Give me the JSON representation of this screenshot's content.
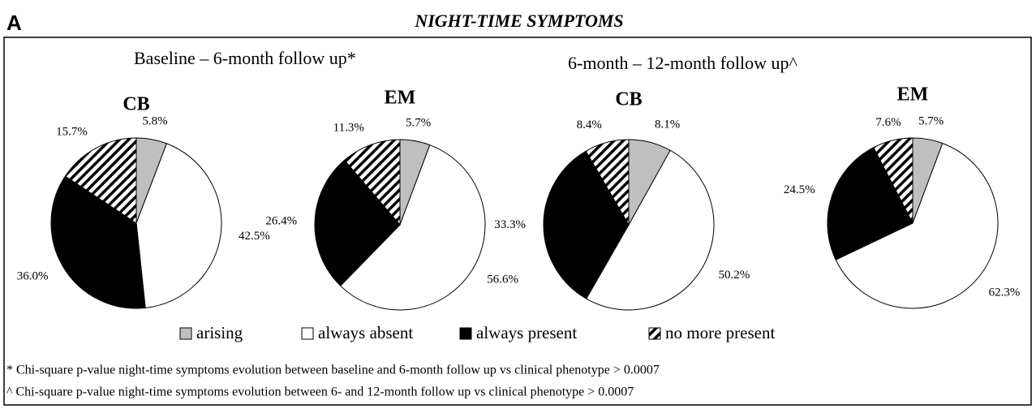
{
  "panel": "A",
  "title": "NIGHT-TIME SYMPTOMS",
  "groups": [
    "Baseline – 6-month follow up*",
    "6-month – 12-month follow up^"
  ],
  "footnotes": [
    "* Chi-square p-value night-time symptoms evolution between baseline and 6-month follow up vs clinical phenotype > 0.0007",
    "^ Chi-square p-value night-time symptoms evolution between 6- and 12-month follow up vs clinical phenotype > 0.0007"
  ],
  "chart_data": [
    {
      "type": "pie",
      "title": "CB",
      "categories": [
        "arising",
        "always absent",
        "always present",
        "no more present"
      ],
      "values": [
        5.8,
        42.5,
        36,
        15.7
      ],
      "value_labels": [
        "5.8%",
        "42.5%",
        "36.0%",
        "15.7%"
      ],
      "colors": [
        "#bfbfbf",
        "#ffffff",
        "#000000",
        "#ffffff"
      ],
      "hatch": [
        false,
        false,
        false,
        true
      ]
    },
    {
      "type": "pie",
      "title": "EM",
      "categories": [
        "arising",
        "always absent",
        "always present",
        "no more present"
      ],
      "values": [
        5.7,
        56.6,
        26.4,
        11.3
      ],
      "value_labels": [
        "5.7%",
        "56.6%",
        "26.4%",
        "11.3%"
      ],
      "colors": [
        "#bfbfbf",
        "#ffffff",
        "#000000",
        "#ffffff"
      ],
      "hatch": [
        false,
        false,
        false,
        true
      ]
    },
    {
      "type": "pie",
      "title": "CB",
      "categories": [
        "arising",
        "always absent",
        "always present",
        "no more present"
      ],
      "values": [
        8.1,
        50.2,
        33.3,
        8.4
      ],
      "value_labels": [
        "8.1%",
        "50.2%",
        "33.3%",
        "8.4%"
      ],
      "colors": [
        "#bfbfbf",
        "#ffffff",
        "#000000",
        "#ffffff"
      ],
      "hatch": [
        false,
        false,
        false,
        true
      ]
    },
    {
      "type": "pie",
      "title": "EM",
      "categories": [
        "arising",
        "always absent",
        "always present",
        "no more present"
      ],
      "values": [
        5.7,
        62.3,
        24.5,
        7.6
      ],
      "value_labels": [
        "5.7%",
        "62.3%",
        "24.5%",
        "7.6%"
      ],
      "colors": [
        "#bfbfbf",
        "#ffffff",
        "#000000",
        "#ffffff"
      ],
      "hatch": [
        false,
        false,
        false,
        true
      ]
    }
  ]
}
